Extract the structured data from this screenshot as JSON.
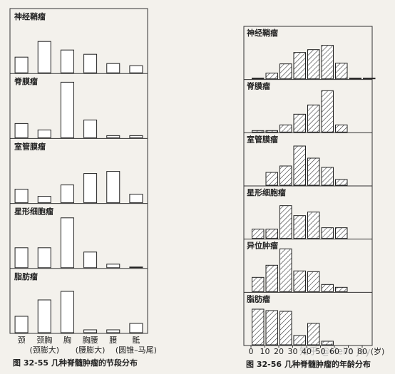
{
  "chart_data": [
    {
      "type": "bar",
      "caption": "图 32-55  几种脊髓肿瘤的节段分布",
      "categories": [
        "颈",
        "颈胸",
        "胸",
        "胸腰",
        "腰",
        "骶"
      ],
      "category_sublabels": [
        null,
        "(颈膨大)",
        null,
        "(腰膨大)",
        null,
        "(圆锥–马尾)"
      ],
      "color": "#ffffff",
      "panels": [
        {
          "name": "神经鞘瘤",
          "values": [
            22,
            44,
            32,
            26,
            13,
            10
          ]
        },
        {
          "name": "脊膜瘤",
          "values": [
            20,
            11,
            78,
            25,
            3,
            3
          ]
        },
        {
          "name": "室管膜瘤",
          "values": [
            19,
            9,
            25,
            41,
            44,
            12
          ]
        },
        {
          "name": "星形细胞瘤",
          "values": [
            28,
            28,
            70,
            22,
            5,
            1
          ]
        },
        {
          "name": "脂肪瘤",
          "values": [
            23,
            46,
            58,
            4,
            4,
            13
          ]
        }
      ]
    },
    {
      "type": "histogram",
      "caption": "图 32-56  几种脊髓肿瘤的年龄分布",
      "x_unit": "(岁)",
      "bins": [
        0,
        10,
        20,
        30,
        40,
        50,
        60,
        70,
        80,
        90
      ],
      "xlim": [
        0,
        90
      ],
      "xticks": [
        0,
        10,
        20,
        30,
        40,
        50,
        60,
        70,
        80
      ],
      "hatch": true,
      "panels": [
        {
          "name": "神经鞘瘤",
          "values": [
            1,
            8,
            21,
            37,
            41,
            47,
            22,
            1,
            1
          ]
        },
        {
          "name": "脊膜瘤",
          "values": [
            2,
            2,
            10,
            25,
            38,
            58,
            10,
            0,
            0
          ]
        },
        {
          "name": "室管膜瘤",
          "values": [
            0,
            18,
            27,
            55,
            38,
            25,
            8,
            0,
            0
          ]
        },
        {
          "name": "星形细胞瘤",
          "values": [
            13,
            13,
            46,
            32,
            37,
            15,
            15,
            0,
            0
          ]
        },
        {
          "name": "异位肿瘤",
          "values": [
            20,
            37,
            60,
            29,
            28,
            10,
            6,
            0,
            0
          ]
        },
        {
          "name": "脂肪瘤",
          "values": [
            50,
            48,
            47,
            13,
            30,
            5,
            0,
            0,
            0
          ]
        }
      ]
    }
  ],
  "watermark": "知乎 @Hello Jay"
}
